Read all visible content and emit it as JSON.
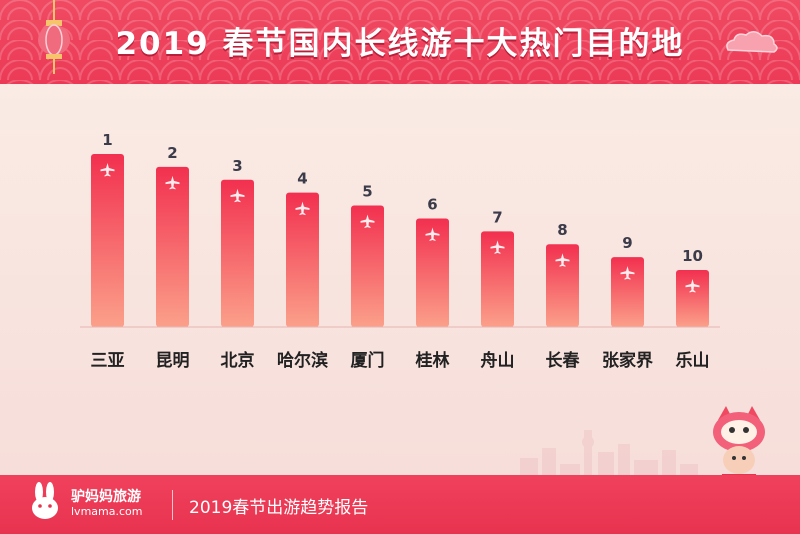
{
  "header": {
    "title": "2019 春节国内长线游十大热门目的地"
  },
  "footer": {
    "brand_name": "驴妈妈旅游",
    "brand_url": "lvmama.com",
    "report_title": "2019春节出游趋势报告"
  },
  "colors": {
    "header_red": "#ec3a56",
    "bar_top": "#f2304f",
    "bar_bottom": "#fba08a",
    "rank_label": "#3b3b4a",
    "category_label": "#222222",
    "background": "#fbeee7"
  },
  "icons": [
    "lantern-icon",
    "cloud-icon",
    "rabbit-logo-icon",
    "plane-icon",
    "mascot-icon",
    "city-skyline"
  ],
  "chart_data": {
    "type": "bar",
    "categories": [
      "三亚",
      "昆明",
      "北京",
      "哈尔滨",
      "厦门",
      "桂林",
      "舟山",
      "长春",
      "张家界",
      "乐山"
    ],
    "rank_labels": [
      "1",
      "2",
      "3",
      "4",
      "5",
      "6",
      "7",
      "8",
      "9",
      "10"
    ],
    "values": [
      10,
      9,
      8,
      7,
      6,
      5,
      4,
      3,
      2,
      1
    ],
    "title": "2019 春节国内长线游十大热门目的地",
    "xlabel": "",
    "ylabel": "",
    "grid": false,
    "legend": "none"
  }
}
